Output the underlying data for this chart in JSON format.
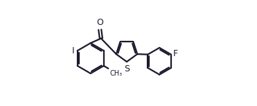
{
  "bg_color": "#ffffff",
  "line_color": "#1a1a2e",
  "line_width": 1.6,
  "dbo": 0.012,
  "font_size": 9,
  "fig_width": 3.71,
  "fig_height": 1.53,
  "xlim": [
    0.0,
    1.0
  ],
  "ylim": [
    0.05,
    0.95
  ]
}
